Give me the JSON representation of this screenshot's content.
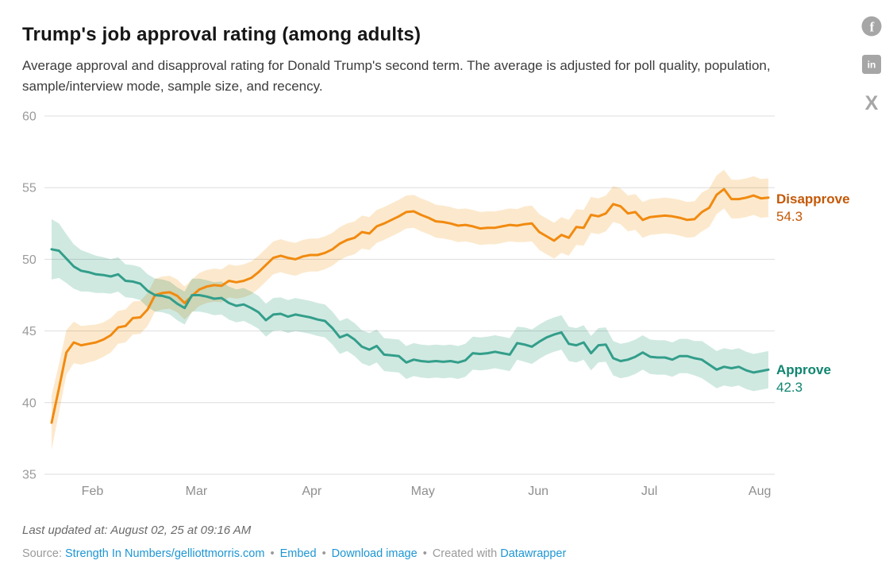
{
  "header": {
    "title": "Trump's job approval rating (among adults)",
    "subtitle": "Average approval and disapproval rating for Donald Trump's second term. The average is adjusted for poll quality, population, sample/interview mode, sample size, and recency."
  },
  "social": {
    "facebook_glyph": "f",
    "linkedin_glyph": "in",
    "x_glyph": "X"
  },
  "chart_data": {
    "type": "line",
    "title": "Trump's job approval rating (among adults)",
    "x_range": [
      "Jan 21, 2025",
      "Aug 02, 2025"
    ],
    "ylim": [
      35,
      60
    ],
    "grid": "horizontal",
    "legend_position": "right-edge-labels",
    "y_ticks": [
      60,
      55,
      50,
      45,
      40,
      35
    ],
    "x_ticks": [
      {
        "label": "Feb",
        "f": 0.057
      },
      {
        "label": "Mar",
        "f": 0.202
      },
      {
        "label": "Apr",
        "f": 0.363
      },
      {
        "label": "May",
        "f": 0.518
      },
      {
        "label": "Jun",
        "f": 0.679
      },
      {
        "label": "Jul",
        "f": 0.834
      },
      {
        "label": "Aug",
        "f": 0.988
      }
    ],
    "series": [
      {
        "name": "Disapprove",
        "end_value": "54.3",
        "color": "#f18a10",
        "band_color": "#fce9cd",
        "label_color": "#c45806",
        "values": [
          38.6,
          41.0,
          43.5,
          44.2,
          44.0,
          44.1,
          44.2,
          44.4,
          44.7,
          45.25,
          45.35,
          45.9,
          45.95,
          46.5,
          47.5,
          47.65,
          47.7,
          47.45,
          46.95,
          47.45,
          47.9,
          48.1,
          48.2,
          48.15,
          48.5,
          48.4,
          48.5,
          48.7,
          49.1,
          49.6,
          50.1,
          50.25,
          50.1,
          50.0,
          50.2,
          50.3,
          50.3,
          50.45,
          50.7,
          51.1,
          51.35,
          51.5,
          51.9,
          51.8,
          52.3,
          52.5,
          52.75,
          53.0,
          53.3,
          53.35,
          53.1,
          52.9,
          52.65,
          52.6,
          52.5,
          52.35,
          52.4,
          52.3,
          52.15,
          52.2,
          52.2,
          52.3,
          52.4,
          52.35,
          52.45,
          52.5,
          51.9,
          51.6,
          51.3,
          51.7,
          51.5,
          52.25,
          52.2,
          53.1,
          53.0,
          53.2,
          53.85,
          53.7,
          53.2,
          53.3,
          52.75,
          52.95,
          53.0,
          53.05,
          53.0,
          52.9,
          52.75,
          52.8,
          53.3,
          53.6,
          54.5,
          54.9,
          54.2,
          54.2,
          54.3,
          54.45,
          54.25,
          54.3
        ],
        "band_halfwidth": [
          1.9,
          1.7,
          1.55,
          1.45,
          1.35,
          1.3,
          1.25,
          1.2,
          1.2,
          1.15,
          1.15,
          1.15,
          1.15,
          1.15,
          1.15,
          1.15,
          1.15,
          1.15,
          1.15,
          1.15,
          1.15,
          1.15,
          1.15,
          1.15,
          1.15,
          1.15,
          1.15,
          1.15,
          1.15,
          1.15,
          1.15,
          1.15,
          1.15,
          1.15,
          1.15,
          1.15,
          1.15,
          1.15,
          1.15,
          1.15,
          1.15,
          1.15,
          1.15,
          1.15,
          1.15,
          1.15,
          1.15,
          1.15,
          1.15,
          1.15,
          1.15,
          1.15,
          1.15,
          1.15,
          1.15,
          1.15,
          1.15,
          1.15,
          1.15,
          1.15,
          1.15,
          1.15,
          1.15,
          1.15,
          1.25,
          1.25,
          1.25,
          1.25,
          1.25,
          1.25,
          1.25,
          1.25,
          1.25,
          1.25,
          1.25,
          1.25,
          1.25,
          1.25,
          1.25,
          1.25,
          1.25,
          1.25,
          1.25,
          1.25,
          1.25,
          1.25,
          1.25,
          1.25,
          1.35,
          1.35,
          1.35,
          1.35,
          1.35,
          1.35,
          1.35,
          1.35,
          1.35,
          1.35
        ]
      },
      {
        "name": "Approve",
        "end_value": "42.3",
        "color": "#339e8a",
        "band_color": "#cfe9e1",
        "label_color": "#0f8570",
        "values": [
          50.7,
          50.6,
          50.05,
          49.5,
          49.2,
          49.1,
          48.95,
          48.9,
          48.8,
          48.95,
          48.5,
          48.45,
          48.3,
          47.8,
          47.5,
          47.45,
          47.3,
          46.9,
          46.6,
          47.5,
          47.5,
          47.4,
          47.25,
          47.3,
          46.95,
          46.75,
          46.85,
          46.6,
          46.3,
          45.75,
          46.15,
          46.2,
          46.0,
          46.15,
          46.05,
          45.95,
          45.8,
          45.7,
          45.2,
          44.55,
          44.75,
          44.4,
          43.9,
          43.7,
          43.95,
          43.35,
          43.3,
          43.25,
          42.8,
          43.0,
          42.9,
          42.85,
          42.9,
          42.85,
          42.9,
          42.8,
          42.95,
          43.45,
          43.4,
          43.45,
          43.55,
          43.45,
          43.35,
          44.15,
          44.05,
          43.9,
          44.25,
          44.55,
          44.75,
          44.9,
          44.1,
          44.0,
          44.2,
          43.45,
          44.0,
          44.05,
          43.1,
          42.9,
          43.0,
          43.2,
          43.5,
          43.2,
          43.15,
          43.15,
          43.0,
          43.25,
          43.25,
          43.1,
          43.0,
          42.65,
          42.3,
          42.5,
          42.4,
          42.5,
          42.25,
          42.1,
          42.2,
          42.3
        ],
        "band_halfwidth": [
          2.1,
          1.9,
          1.7,
          1.55,
          1.45,
          1.35,
          1.3,
          1.25,
          1.2,
          1.2,
          1.15,
          1.15,
          1.15,
          1.15,
          1.15,
          1.15,
          1.15,
          1.15,
          1.15,
          1.15,
          1.15,
          1.15,
          1.15,
          1.15,
          1.15,
          1.15,
          1.15,
          1.15,
          1.15,
          1.15,
          1.15,
          1.15,
          1.15,
          1.15,
          1.15,
          1.15,
          1.15,
          1.15,
          1.15,
          1.15,
          1.15,
          1.15,
          1.15,
          1.15,
          1.15,
          1.15,
          1.15,
          1.15,
          1.15,
          1.15,
          1.15,
          1.15,
          1.15,
          1.15,
          1.15,
          1.15,
          1.15,
          1.15,
          1.15,
          1.15,
          1.15,
          1.15,
          1.15,
          1.15,
          1.2,
          1.2,
          1.2,
          1.2,
          1.2,
          1.2,
          1.2,
          1.2,
          1.2,
          1.2,
          1.2,
          1.2,
          1.2,
          1.2,
          1.2,
          1.2,
          1.2,
          1.2,
          1.2,
          1.2,
          1.2,
          1.2,
          1.2,
          1.2,
          1.3,
          1.3,
          1.3,
          1.3,
          1.3,
          1.3,
          1.3,
          1.3,
          1.3,
          1.3
        ]
      }
    ]
  },
  "footer": {
    "last_updated": "Last updated at: August 02, 25 at 09:16 AM",
    "source_prefix": "Source:",
    "source_link": "Strength In Numbers/gelliottmorris.com",
    "embed_label": "Embed",
    "download_label": "Download image",
    "created_with": "Created with",
    "datawrapper_label": "Datawrapper",
    "separator": "•"
  }
}
